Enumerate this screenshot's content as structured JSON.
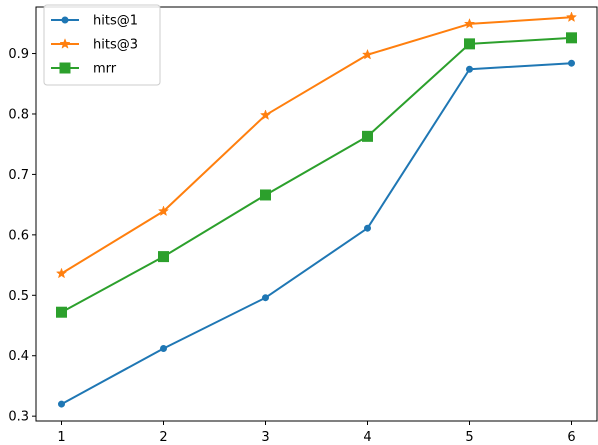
{
  "chart_data": {
    "type": "line",
    "title": "",
    "xlabel": "",
    "ylabel": "",
    "x": [
      1,
      2,
      3,
      4,
      5,
      6
    ],
    "xlim": [
      0.75,
      6.25
    ],
    "ylim": [
      0.292,
      0.977
    ],
    "xticks": [
      "1",
      "2",
      "3",
      "4",
      "5",
      "6"
    ],
    "yticks": [
      0.3,
      0.4,
      0.5,
      0.6,
      0.7,
      0.8,
      0.9
    ],
    "ytick_labels": [
      "0.3",
      "0.4",
      "0.5",
      "0.6",
      "0.7",
      "0.8",
      "0.9"
    ],
    "grid": false,
    "legend_position": "top-left",
    "series": [
      {
        "name": "hits@1",
        "color": "#1f77b4",
        "marker": "circle",
        "values": [
          0.32,
          0.412,
          0.496,
          0.611,
          0.874,
          0.884
        ]
      },
      {
        "name": "hits@3",
        "color": "#ff7f0e",
        "marker": "star",
        "values": [
          0.536,
          0.639,
          0.798,
          0.898,
          0.949,
          0.96
        ]
      },
      {
        "name": "mrr",
        "color": "#2ca02c",
        "marker": "square",
        "values": [
          0.472,
          0.564,
          0.666,
          0.763,
          0.916,
          0.926
        ]
      }
    ]
  }
}
